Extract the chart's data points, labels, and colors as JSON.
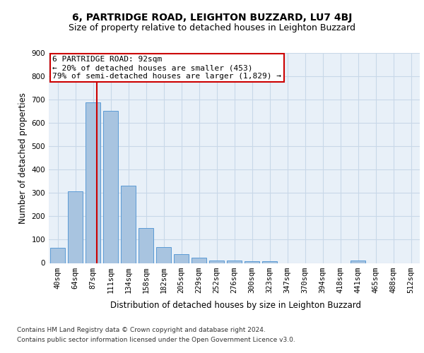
{
  "title1": "6, PARTRIDGE ROAD, LEIGHTON BUZZARD, LU7 4BJ",
  "title2": "Size of property relative to detached houses in Leighton Buzzard",
  "xlabel": "Distribution of detached houses by size in Leighton Buzzard",
  "ylabel": "Number of detached properties",
  "categories": [
    "40sqm",
    "64sqm",
    "87sqm",
    "111sqm",
    "134sqm",
    "158sqm",
    "182sqm",
    "205sqm",
    "229sqm",
    "252sqm",
    "276sqm",
    "300sqm",
    "323sqm",
    "347sqm",
    "370sqm",
    "394sqm",
    "418sqm",
    "441sqm",
    "465sqm",
    "488sqm",
    "512sqm"
  ],
  "values": [
    65,
    307,
    687,
    651,
    330,
    150,
    68,
    37,
    22,
    12,
    10,
    9,
    8,
    0,
    0,
    0,
    0,
    12,
    0,
    0,
    0
  ],
  "bar_color": "#a8c4e0",
  "bar_edge_color": "#5b9bd5",
  "grid_color": "#c8d8e8",
  "background_color": "#e8f0f8",
  "vline_color": "#cc0000",
  "annotation_text": "6 PARTRIDGE ROAD: 92sqm\n← 20% of detached houses are smaller (453)\n79% of semi-detached houses are larger (1,829) →",
  "annotation_box_color": "#ffffff",
  "annotation_box_edge": "#cc0000",
  "ylim": [
    0,
    900
  ],
  "yticks": [
    0,
    100,
    200,
    300,
    400,
    500,
    600,
    700,
    800,
    900
  ],
  "footer_line1": "Contains HM Land Registry data © Crown copyright and database right 2024.",
  "footer_line2": "Contains public sector information licensed under the Open Government Licence v3.0.",
  "title1_fontsize": 10,
  "title2_fontsize": 9,
  "tick_fontsize": 7.5,
  "ylabel_fontsize": 8.5,
  "xlabel_fontsize": 8.5,
  "footer_fontsize": 6.5,
  "ann_fontsize": 8
}
